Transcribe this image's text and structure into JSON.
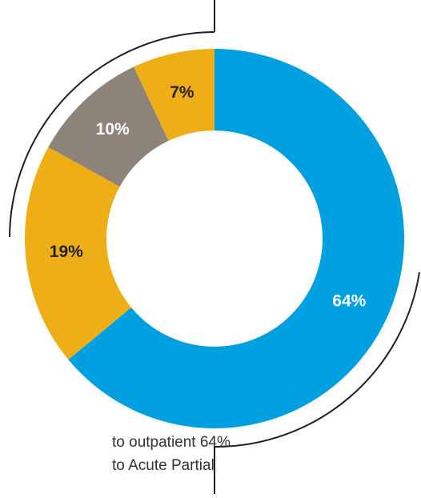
{
  "chart_data": {
    "type": "pie",
    "values": [
      64,
      19,
      10,
      7
    ],
    "value_labels": [
      "64%",
      "19%",
      "10%",
      "7%"
    ],
    "colors": [
      "#009fdf",
      "#eeae16",
      "#8d8379",
      "#eeae16"
    ],
    "label_colors": [
      "#ffffff",
      "#231f20",
      "#ffffff",
      "#231f20"
    ],
    "donut": true,
    "annotations": [
      "to outpatient 64%",
      "to Acute Partial"
    ]
  }
}
